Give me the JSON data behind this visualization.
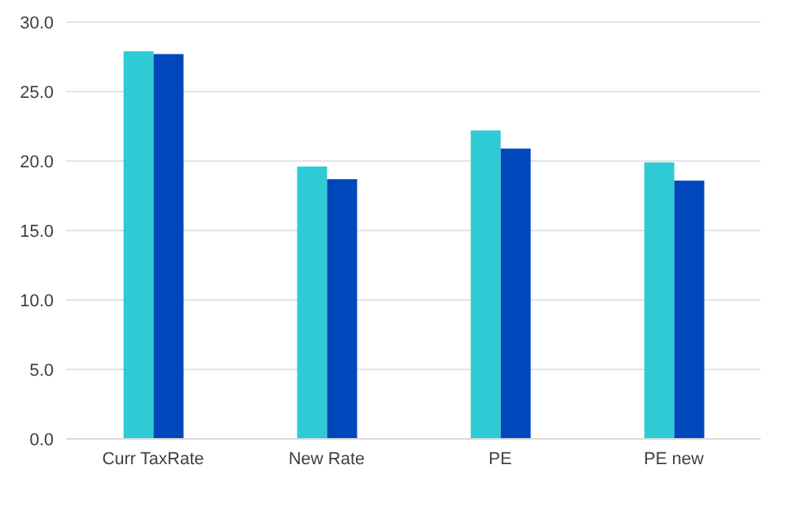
{
  "chart_data": {
    "type": "bar",
    "categories": [
      "Curr TaxRate",
      "New Rate",
      "PE",
      "PE new"
    ],
    "series": [
      {
        "color": "#2ecbd4",
        "values": [
          27.9,
          19.6,
          22.2,
          19.9
        ]
      },
      {
        "color": "#0047bb",
        "values": [
          27.7,
          18.7,
          20.9,
          18.6
        ]
      }
    ],
    "ylim": [
      0,
      30
    ],
    "yticks": [
      {
        "value": 0,
        "label": "0.0"
      },
      {
        "value": 5,
        "label": "5.0"
      },
      {
        "value": 10,
        "label": "10.0"
      },
      {
        "value": 15,
        "label": "15.0"
      },
      {
        "value": 20,
        "label": "20.0"
      },
      {
        "value": 25,
        "label": "25.0"
      },
      {
        "value": 30,
        "label": "30.0"
      }
    ],
    "grid": "y"
  }
}
